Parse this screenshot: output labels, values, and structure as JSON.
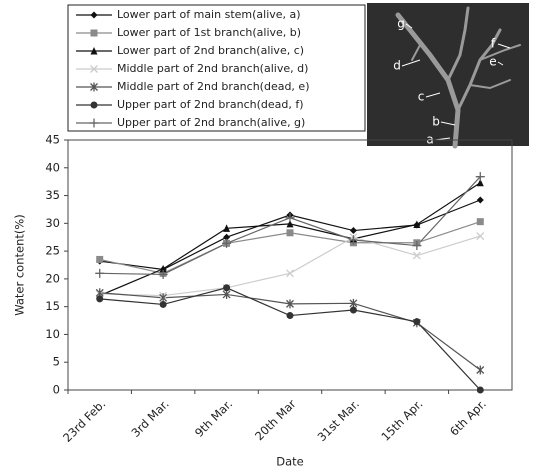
{
  "chart_data": {
    "type": "line",
    "x_label": "Date",
    "y_label": "Water content(%)",
    "categories": [
      "23rd Feb.",
      "3rd Mar.",
      "9th Mar.",
      "20th Mar",
      "31st Mar.",
      "15th Apr.",
      "6th Apr."
    ],
    "ylim": [
      0,
      45
    ],
    "yticks": [
      0,
      5,
      10,
      15,
      20,
      25,
      30,
      35,
      40,
      45
    ],
    "annotations": [
      "g",
      "f",
      "d",
      "e",
      "c",
      "b",
      "a"
    ],
    "series": [
      {
        "name": "Lower part of main  stem(alive, a)",
        "color": "#111111",
        "marker": "diamond",
        "values": [
          23.2,
          21.7,
          27.5,
          31.5,
          28.7,
          29.7,
          34.2
        ]
      },
      {
        "name": "Lower part of 1st branch(alive, b)",
        "color": "#8a8a8a",
        "marker": "square",
        "values": [
          23.5,
          21.0,
          26.4,
          28.3,
          26.5,
          26.5,
          30.3
        ]
      },
      {
        "name": "Lower part of 2nd branch(alive, c)",
        "color": "#111111",
        "marker": "triangle",
        "values": [
          17.0,
          21.8,
          29.1,
          29.9,
          27.2,
          29.8,
          37.3
        ]
      },
      {
        "name": "Middle part of 2nd branch(alive, d)",
        "color": "#cccccc",
        "marker": "x",
        "values": [
          17.3,
          17.0,
          18.4,
          21.0,
          27.5,
          24.2,
          27.7
        ]
      },
      {
        "name": "Middle part of 2nd branch(dead, e)",
        "color": "#555555",
        "marker": "star",
        "values": [
          17.5,
          16.6,
          17.2,
          15.5,
          15.6,
          12.1,
          3.6
        ]
      },
      {
        "name": "Upper part of 2nd branch(dead, f)",
        "color": "#333333",
        "marker": "circle",
        "values": [
          16.4,
          15.4,
          18.4,
          13.4,
          14.4,
          12.3,
          0
        ]
      },
      {
        "name": "Upper part of 2nd branch(alive, g)",
        "color": "#666666",
        "marker": "plus",
        "values": [
          21.0,
          20.8,
          26.4,
          31.0,
          27.0,
          26.0,
          38.4
        ]
      }
    ]
  }
}
